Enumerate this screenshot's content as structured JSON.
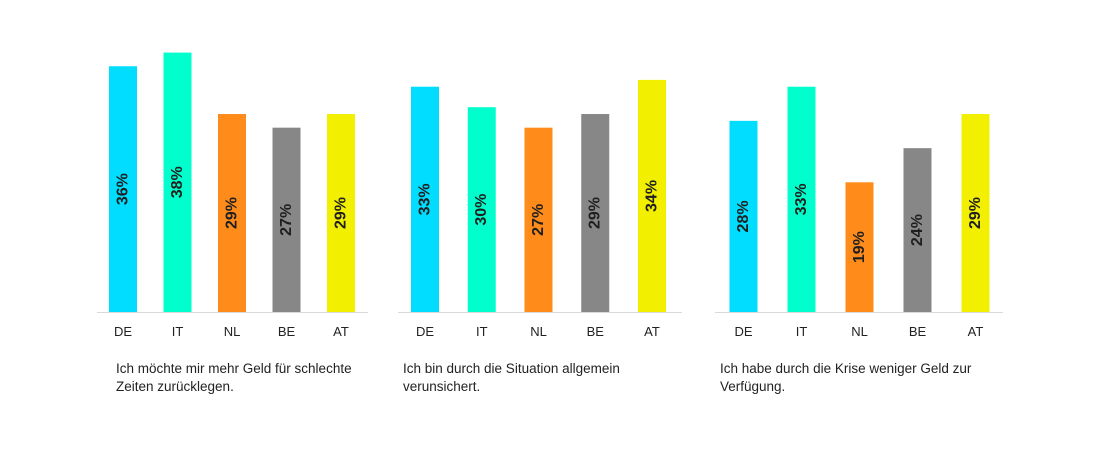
{
  "chart_data": [
    {
      "type": "bar",
      "categories": [
        "DE",
        "IT",
        "NL",
        "BE",
        "AT"
      ],
      "values": [
        36,
        38,
        29,
        27,
        29
      ],
      "data_labels": [
        "36%",
        "38%",
        "29%",
        "27%",
        "29%"
      ],
      "colors": [
        "#00ddff",
        "#00ffcc",
        "#ff8c1a",
        "#878787",
        "#f2f000"
      ],
      "caption": "Ich möchte mir mehr Geld für schlechte Zeiten zurücklegen.",
      "ylim": [
        0,
        37.5
      ],
      "grid": false
    },
    {
      "type": "bar",
      "categories": [
        "DE",
        "IT",
        "NL",
        "BE",
        "AT"
      ],
      "values": [
        33,
        30,
        27,
        29,
        34
      ],
      "data_labels": [
        "33%",
        "30%",
        "27%",
        "29%",
        "34%"
      ],
      "colors": [
        "#00ddff",
        "#00ffcc",
        "#ff8c1a",
        "#878787",
        "#f2f000"
      ],
      "caption": "Ich bin durch die Situation allgemein verunsichert.",
      "ylim": [
        0,
        37.5
      ],
      "grid": false
    },
    {
      "type": "bar",
      "categories": [
        "DE",
        "IT",
        "NL",
        "BE",
        "AT"
      ],
      "values": [
        28,
        33,
        19,
        24,
        29
      ],
      "data_labels": [
        "28%",
        "33%",
        "19%",
        "24%",
        "29%"
      ],
      "colors": [
        "#00ddff",
        "#00ffcc",
        "#ff8c1a",
        "#878787",
        "#f2f000"
      ],
      "caption": "Ich habe durch die Krise weniger Geld zur Verfügung.",
      "ylim": [
        0,
        37.5
      ],
      "grid": false
    }
  ]
}
